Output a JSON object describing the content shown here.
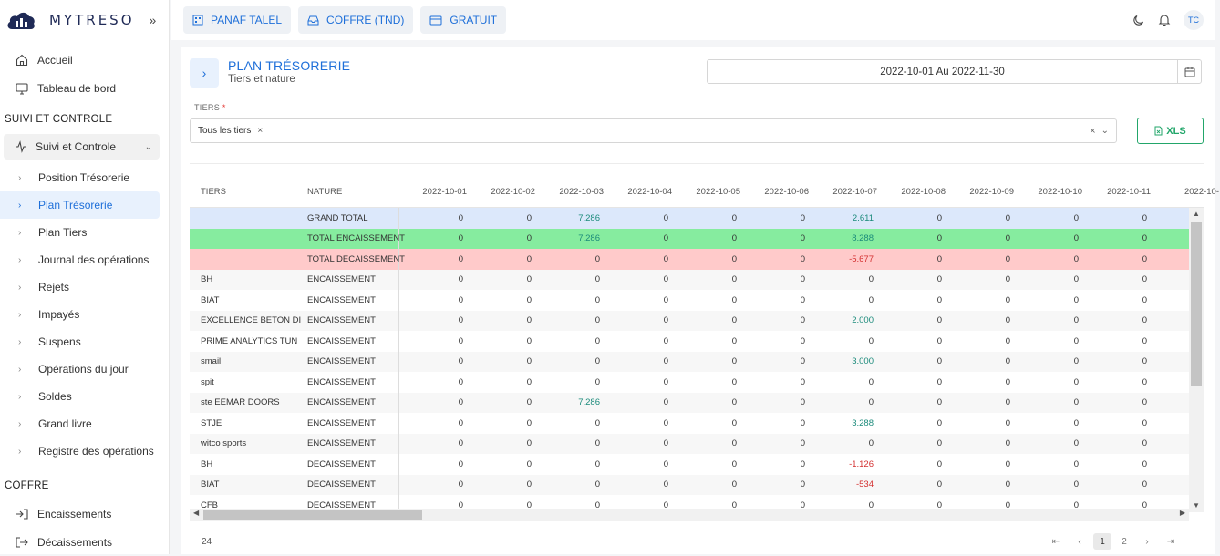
{
  "brand": {
    "name": "MYTRESO"
  },
  "sidebar": {
    "top_items": [
      {
        "label": "Accueil"
      },
      {
        "label": "Tableau de bord"
      }
    ],
    "section1": "SUIVI ET CONTROLE",
    "group": "Suivi et Controle",
    "sub_items": [
      {
        "label": "Position Trésorerie",
        "active": false
      },
      {
        "label": "Plan Trésorerie",
        "active": true
      },
      {
        "label": "Plan Tiers",
        "active": false
      },
      {
        "label": "Journal des opérations",
        "active": false
      },
      {
        "label": "Rejets",
        "active": false
      },
      {
        "label": "Impayés",
        "active": false
      },
      {
        "label": "Suspens",
        "active": false
      },
      {
        "label": "Opérations du jour",
        "active": false
      },
      {
        "label": "Soldes",
        "active": false
      },
      {
        "label": "Grand livre",
        "active": false
      },
      {
        "label": "Registre des opérations",
        "active": false
      }
    ],
    "section2": "COFFRE",
    "coffre_items": [
      {
        "label": "Encaissements"
      },
      {
        "label": "Décaissements"
      }
    ]
  },
  "topbar": {
    "buttons": [
      "PANAF TALEL",
      "COFFRE (TND)",
      "GRATUIT"
    ],
    "user_initials": "TC"
  },
  "page": {
    "title": "PLAN TRÉSORERIE",
    "subtitle": "Tiers et nature",
    "date_range": "2022-10-01 Au 2022-11-30",
    "tiers_label": "TIERS",
    "tiers_required": "*",
    "tiers_chip": "Tous les tiers",
    "export_label": "XLS"
  },
  "table": {
    "col_tiers": "TIERS",
    "col_nature": "NATURE",
    "dates": [
      "2022-10-01",
      "2022-10-02",
      "2022-10-03",
      "2022-10-04",
      "2022-10-05",
      "2022-10-06",
      "2022-10-07",
      "2022-10-08",
      "2022-10-09",
      "2022-10-10",
      "2022-10-11",
      "2022-10-"
    ],
    "rows": [
      {
        "tiers": "",
        "nature": "GRAND TOTAL",
        "kind": "grand",
        "values": [
          "0",
          "0",
          "7.286",
          "0",
          "0",
          "0",
          "2.611",
          "0",
          "0",
          "0",
          "0",
          ""
        ]
      },
      {
        "tiers": "",
        "nature": "TOTAL ENCAISSEMENT",
        "kind": "enc",
        "values": [
          "0",
          "0",
          "7.286",
          "0",
          "0",
          "0",
          "8.288",
          "0",
          "0",
          "0",
          "0",
          ""
        ]
      },
      {
        "tiers": "",
        "nature": "TOTAL DECAISSEMENT",
        "kind": "dec",
        "values": [
          "0",
          "0",
          "0",
          "0",
          "0",
          "0",
          "-5.677",
          "0",
          "0",
          "0",
          "0",
          ""
        ]
      },
      {
        "tiers": "BH",
        "nature": "ENCAISSEMENT",
        "kind": "",
        "values": [
          "0",
          "0",
          "0",
          "0",
          "0",
          "0",
          "0",
          "0",
          "0",
          "0",
          "0",
          ""
        ]
      },
      {
        "tiers": "BIAT",
        "nature": "ENCAISSEMENT",
        "kind": "",
        "values": [
          "0",
          "0",
          "0",
          "0",
          "0",
          "0",
          "0",
          "0",
          "0",
          "0",
          "0",
          ""
        ]
      },
      {
        "tiers": "EXCELLENCE BETON DI",
        "nature": "ENCAISSEMENT",
        "kind": "",
        "values": [
          "0",
          "0",
          "0",
          "0",
          "0",
          "0",
          "2.000",
          "0",
          "0",
          "0",
          "0",
          ""
        ]
      },
      {
        "tiers": "PRIME ANALYTICS TUN",
        "nature": "ENCAISSEMENT",
        "kind": "",
        "values": [
          "0",
          "0",
          "0",
          "0",
          "0",
          "0",
          "0",
          "0",
          "0",
          "0",
          "0",
          ""
        ]
      },
      {
        "tiers": "smail",
        "nature": "ENCAISSEMENT",
        "kind": "",
        "values": [
          "0",
          "0",
          "0",
          "0",
          "0",
          "0",
          "3.000",
          "0",
          "0",
          "0",
          "0",
          ""
        ]
      },
      {
        "tiers": "spit",
        "nature": "ENCAISSEMENT",
        "kind": "",
        "values": [
          "0",
          "0",
          "0",
          "0",
          "0",
          "0",
          "0",
          "0",
          "0",
          "0",
          "0",
          ""
        ]
      },
      {
        "tiers": "ste EEMAR DOORS",
        "nature": "ENCAISSEMENT",
        "kind": "",
        "values": [
          "0",
          "0",
          "7.286",
          "0",
          "0",
          "0",
          "0",
          "0",
          "0",
          "0",
          "0",
          ""
        ]
      },
      {
        "tiers": "STJE",
        "nature": "ENCAISSEMENT",
        "kind": "",
        "values": [
          "0",
          "0",
          "0",
          "0",
          "0",
          "0",
          "3.288",
          "0",
          "0",
          "0",
          "0",
          ""
        ]
      },
      {
        "tiers": "witco sports",
        "nature": "ENCAISSEMENT",
        "kind": "",
        "values": [
          "0",
          "0",
          "0",
          "0",
          "0",
          "0",
          "0",
          "0",
          "0",
          "0",
          "0",
          ""
        ]
      },
      {
        "tiers": "BH",
        "nature": "DECAISSEMENT",
        "kind": "",
        "values": [
          "0",
          "0",
          "0",
          "0",
          "0",
          "0",
          "-1.126",
          "0",
          "0",
          "0",
          "0",
          ""
        ]
      },
      {
        "tiers": "BIAT",
        "nature": "DECAISSEMENT",
        "kind": "",
        "values": [
          "0",
          "0",
          "0",
          "0",
          "0",
          "0",
          "-534",
          "0",
          "0",
          "0",
          "0",
          ""
        ]
      },
      {
        "tiers": "CFB",
        "nature": "DECAISSEMENT",
        "kind": "",
        "values": [
          "0",
          "0",
          "0",
          "0",
          "0",
          "0",
          "0",
          "0",
          "0",
          "0",
          "0",
          ""
        ]
      }
    ],
    "total_count": "24"
  },
  "pagination": {
    "pages": [
      "1",
      "2"
    ],
    "current": "1"
  }
}
